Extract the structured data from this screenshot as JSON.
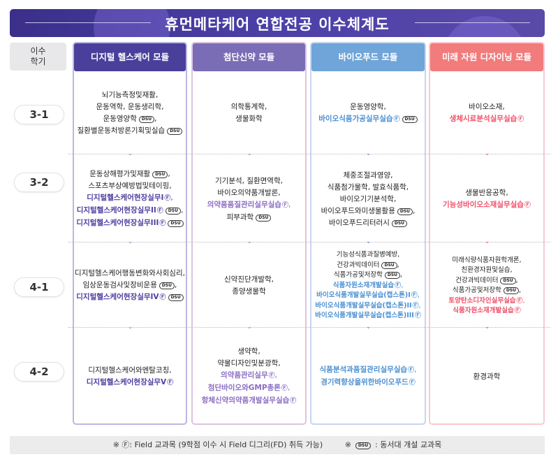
{
  "title": "휴먼메타케어 연합전공 이수체계도",
  "semester_header": [
    "이수",
    "학기"
  ],
  "semesters": [
    "3-1",
    "3-2",
    "4-1",
    "4-2"
  ],
  "modules": [
    {
      "name": "디지털 헬스케어 모듈",
      "header_color": "#4a3f9a",
      "accent_color": "#4f3fa0",
      "border_color": "#b9b8e2",
      "cells": [
        [
          {
            "t": "뇌기능측정및재활",
            "c": true
          },
          {
            "t": "운동역학, 운동생리학",
            "c": true
          },
          {
            "t": "운동영양학",
            "dsu": true,
            "c": true
          },
          {
            "t": "질환별운동처방론기획및실습",
            "dsu": true
          }
        ],
        [
          {
            "t": "운동상해평가및재활",
            "dsu": true,
            "c": true
          },
          {
            "t": "스포츠부상예방법및테이핑",
            "c": true
          },
          {
            "t": "디지털헬스케어현장실무I",
            "hl": true,
            "f": true,
            "c": true
          },
          {
            "t": "디지털헬스케어현장실무II",
            "hl": true,
            "f": true,
            "dsu": true,
            "c": true
          },
          {
            "t": "디지털헬스케어현장실무III",
            "hl": true,
            "f": true,
            "dsu": true
          }
        ],
        [
          {
            "t": "디지털헬스케어행동변화와사회심리",
            "c": true
          },
          {
            "t": "임상운동검사및장비운용",
            "dsu": true,
            "c": true
          },
          {
            "t": "디지털헬스케어현장실무IV",
            "hl": true,
            "f": true,
            "dsu": true
          }
        ],
        [
          {
            "t": "디지털헬스케어와멘탈코칭",
            "c": true
          },
          {
            "t": "디지털헬스케어현장실무V",
            "hl": true,
            "f": true
          }
        ]
      ]
    },
    {
      "name": "첨단신약 모듈",
      "header_color": "#7a6db5",
      "accent_color": "#8b6cc4",
      "border_color": "#dcc3e2",
      "cells": [
        [
          {
            "t": "의학통계학",
            "c": true
          },
          {
            "t": "생물화학"
          }
        ],
        [
          {
            "t": "기기분석, 질환면역학",
            "c": true
          },
          {
            "t": "바이오의약품개발론",
            "c": true
          },
          {
            "t": "의약품품질관리실무실습",
            "hl": true,
            "f": true,
            "c": true
          },
          {
            "t": "피부과학",
            "dsu": true
          }
        ],
        [
          {
            "t": "신약진단개발학",
            "c": true
          },
          {
            "t": "종양생물학"
          }
        ],
        [
          {
            "t": "생약학",
            "c": true
          },
          {
            "t": "약물디자인및분광학",
            "c": true
          },
          {
            "t": "의약품관리실무",
            "hl": true,
            "f": true,
            "c": true
          },
          {
            "t": "첨단바이오와GMP총론",
            "hl": true,
            "f": true,
            "c": true
          },
          {
            "t": "항체신약의약품개발실무실습",
            "hl": true,
            "f": true
          }
        ]
      ]
    },
    {
      "name": "바이오푸드 모듈",
      "header_color": "#6fa5d8",
      "accent_color": "#4a8fd2",
      "border_color": "#c6d5ef",
      "cells": [
        [
          {
            "t": "운동영양학",
            "c": true
          },
          {
            "t": "바이오식품가공실무실습",
            "hl": true,
            "f": true,
            "dsu": true
          }
        ],
        [
          {
            "t": "체중조절과영양",
            "c": true
          },
          {
            "t": "식품첨가물학, 발효식품학",
            "c": true
          },
          {
            "t": "바이오기기분석학",
            "c": true
          },
          {
            "t": "바이오푸드와미생물활용",
            "dsu": true,
            "c": true
          },
          {
            "t": "바이오푸드리터러시",
            "dsu": true
          }
        ],
        [
          {
            "t": "기능성식품과질병예방",
            "c": true
          },
          {
            "t": "건강과빅데이터",
            "dsu": true,
            "c": true
          },
          {
            "t": "식품가공및저장학",
            "dsu": true,
            "c": true
          },
          {
            "t": "식품자원소재개발실습",
            "hl": true,
            "f": true,
            "c": true
          },
          {
            "t": "바이오식품개발실무실습(캡스톤)I",
            "hl": true,
            "f": true,
            "c": true
          },
          {
            "t": "바이오식품개발실무실습(캡스톤)II",
            "hl": true,
            "f": true,
            "c": true
          },
          {
            "t": "바이오식품개발실무실습(캡스톤)III",
            "hl": true,
            "f": true
          }
        ],
        [
          {
            "t": "식품분석과품질관리실무실습",
            "hl": true,
            "f": true,
            "c": true
          },
          {
            "t": "경기력향상을위한바이오푸드",
            "hl": true,
            "f": true
          }
        ]
      ]
    },
    {
      "name": "미래 자원 디자이닝 모듈",
      "header_color": "#f27b7b",
      "accent_color": "#f0506a",
      "border_color": "#f8c9d1",
      "cells": [
        [
          {
            "t": "바이오소재",
            "c": true
          },
          {
            "t": "생체시료분석실무실습",
            "hl": true,
            "f": true
          }
        ],
        [
          {
            "t": "생물반응공학",
            "c": true
          },
          {
            "t": "기능성바이오소재실무실습",
            "hl": true,
            "f": true
          }
        ],
        [
          {
            "t": "미래식량식품자원학개론",
            "c": true
          },
          {
            "t": "친환경자원및실습",
            "c": true
          },
          {
            "t": "건강과빅데이터",
            "dsu": true,
            "c": true
          },
          {
            "t": "식품가공및저장학",
            "dsu": true,
            "c": true
          },
          {
            "t": "토양탄소디자인실무실습",
            "hl": true,
            "f": true,
            "c": true
          },
          {
            "t": "식품자원소재개발실습",
            "hl": true,
            "f": true
          }
        ],
        [
          {
            "t": "환경과학"
          }
        ]
      ]
    }
  ],
  "markers": {
    "field": "Ⓕ",
    "dsu": "DSU"
  },
  "footer": {
    "field_note": "※ Ⓕ: Field 교과목 (9학점 이수 시 Field 디그리(FD) 취득 가능)",
    "dsu_prefix": "※",
    "dsu_badge": "DSU",
    "dsu_note": ": 동서대 개설 교과목"
  }
}
